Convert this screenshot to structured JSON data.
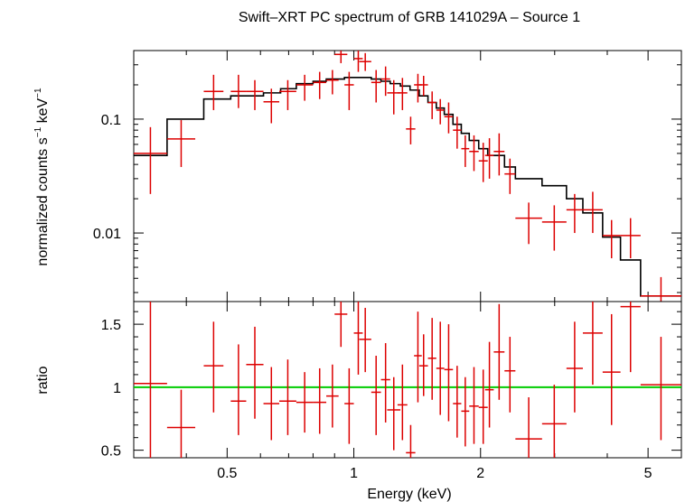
{
  "chart_data": {
    "type": "scatter",
    "title": "Swift–XRT PC spectrum of GRB 141029A – Source 1",
    "xlabel": "Energy (keV)",
    "x_scale": "log",
    "xlim": [
      0.3,
      6.0
    ],
    "x_ticks": [
      0.5,
      1,
      2,
      5
    ],
    "x_tick_labels": [
      "0.5",
      "1",
      "2",
      "5"
    ],
    "top_panel": {
      "ylabel_main": "normalized counts s",
      "ylabel_sup1": "−1",
      "ylabel_mid": " keV",
      "ylabel_sup2": "−1",
      "y_scale": "log",
      "ylim": [
        0.0025,
        0.4
      ],
      "y_ticks": [
        0.01,
        0.1
      ],
      "y_tick_labels": [
        "0.01",
        "0.1"
      ],
      "data_color": "#dd0000",
      "model_color": "#000000",
      "data": [
        {
          "x0": 0.3,
          "x1": 0.36,
          "y": 0.05,
          "ylo": 0.022,
          "yhi": 0.085
        },
        {
          "x0": 0.36,
          "x1": 0.42,
          "y": 0.067,
          "ylo": 0.038,
          "yhi": 0.098
        },
        {
          "x0": 0.44,
          "x1": 0.49,
          "y": 0.175,
          "ylo": 0.12,
          "yhi": 0.245
        },
        {
          "x0": 0.51,
          "x1": 0.555,
          "y": 0.175,
          "ylo": 0.125,
          "yhi": 0.245
        },
        {
          "x0": 0.555,
          "x1": 0.61,
          "y": 0.175,
          "ylo": 0.12,
          "yhi": 0.22
        },
        {
          "x0": 0.61,
          "x1": 0.665,
          "y": 0.142,
          "ylo": 0.092,
          "yhi": 0.185
        },
        {
          "x0": 0.665,
          "x1": 0.73,
          "y": 0.175,
          "ylo": 0.12,
          "yhi": 0.22
        },
        {
          "x0": 0.73,
          "x1": 0.8,
          "y": 0.2,
          "ylo": 0.145,
          "yhi": 0.245
        },
        {
          "x0": 0.8,
          "x1": 0.86,
          "y": 0.21,
          "ylo": 0.15,
          "yhi": 0.26
        },
        {
          "x0": 0.86,
          "x1": 0.92,
          "y": 0.22,
          "ylo": 0.165,
          "yhi": 0.27
        },
        {
          "x0": 0.9,
          "x1": 0.965,
          "y": 0.37,
          "ylo": 0.31,
          "yhi": 0.45
        },
        {
          "x0": 0.95,
          "x1": 1.0,
          "y": 0.2,
          "ylo": 0.12,
          "yhi": 0.26
        },
        {
          "x0": 1.0,
          "x1": 1.05,
          "y": 0.34,
          "ylo": 0.26,
          "yhi": 0.41
        },
        {
          "x0": 1.03,
          "x1": 1.1,
          "y": 0.32,
          "ylo": 0.265,
          "yhi": 0.38
        },
        {
          "x0": 1.1,
          "x1": 1.16,
          "y": 0.21,
          "ylo": 0.14,
          "yhi": 0.27
        },
        {
          "x0": 1.16,
          "x1": 1.22,
          "y": 0.225,
          "ylo": 0.16,
          "yhi": 0.29
        },
        {
          "x0": 1.2,
          "x1": 1.29,
          "y": 0.17,
          "ylo": 0.11,
          "yhi": 0.22
        },
        {
          "x0": 1.27,
          "x1": 1.34,
          "y": 0.17,
          "ylo": 0.12,
          "yhi": 0.23
        },
        {
          "x0": 1.33,
          "x1": 1.4,
          "y": 0.082,
          "ylo": 0.06,
          "yhi": 0.105
        },
        {
          "x0": 1.39,
          "x1": 1.45,
          "y": 0.2,
          "ylo": 0.14,
          "yhi": 0.25
        },
        {
          "x0": 1.43,
          "x1": 1.5,
          "y": 0.2,
          "ylo": 0.16,
          "yhi": 0.24
        },
        {
          "x0": 1.5,
          "x1": 1.57,
          "y": 0.14,
          "ylo": 0.1,
          "yhi": 0.175
        },
        {
          "x0": 1.57,
          "x1": 1.64,
          "y": 0.12,
          "ylo": 0.09,
          "yhi": 0.15
        },
        {
          "x0": 1.64,
          "x1": 1.72,
          "y": 0.105,
          "ylo": 0.075,
          "yhi": 0.14
        },
        {
          "x0": 1.72,
          "x1": 1.8,
          "y": 0.08,
          "ylo": 0.055,
          "yhi": 0.105
        },
        {
          "x0": 1.8,
          "x1": 1.88,
          "y": 0.055,
          "ylo": 0.038,
          "yhi": 0.072
        },
        {
          "x0": 1.88,
          "x1": 1.98,
          "y": 0.052,
          "ylo": 0.035,
          "yhi": 0.072
        },
        {
          "x0": 1.98,
          "x1": 2.08,
          "y": 0.043,
          "ylo": 0.028,
          "yhi": 0.062
        },
        {
          "x0": 2.05,
          "x1": 2.15,
          "y": 0.048,
          "ylo": 0.03,
          "yhi": 0.068
        },
        {
          "x0": 2.15,
          "x1": 2.28,
          "y": 0.052,
          "ylo": 0.032,
          "yhi": 0.075
        },
        {
          "x0": 2.28,
          "x1": 2.42,
          "y": 0.033,
          "ylo": 0.022,
          "yhi": 0.045
        },
        {
          "x0": 2.42,
          "x1": 2.8,
          "y": 0.0135,
          "ylo": 0.008,
          "yhi": 0.0185
        },
        {
          "x0": 2.8,
          "x1": 3.2,
          "y": 0.0125,
          "ylo": 0.007,
          "yhi": 0.0175
        },
        {
          "x0": 3.2,
          "x1": 3.5,
          "y": 0.016,
          "ylo": 0.01,
          "yhi": 0.022
        },
        {
          "x0": 3.5,
          "x1": 3.9,
          "y": 0.016,
          "ylo": 0.01,
          "yhi": 0.023
        },
        {
          "x0": 3.9,
          "x1": 4.3,
          "y": 0.0095,
          "ylo": 0.006,
          "yhi": 0.013
        },
        {
          "x0": 4.3,
          "x1": 4.8,
          "y": 0.0095,
          "ylo": 0.006,
          "yhi": 0.0135
        },
        {
          "x0": 4.8,
          "x1": 6.0,
          "y": 0.0028,
          "ylo": 0.0016,
          "yhi": 0.0041
        }
      ],
      "model_steps": [
        {
          "x0": 0.3,
          "x1": 0.36,
          "y": 0.048
        },
        {
          "x0": 0.36,
          "x1": 0.44,
          "y": 0.1
        },
        {
          "x0": 0.44,
          "x1": 0.51,
          "y": 0.15
        },
        {
          "x0": 0.51,
          "x1": 0.61,
          "y": 0.16
        },
        {
          "x0": 0.61,
          "x1": 0.67,
          "y": 0.17
        },
        {
          "x0": 0.67,
          "x1": 0.73,
          "y": 0.185
        },
        {
          "x0": 0.73,
          "x1": 0.8,
          "y": 0.205
        },
        {
          "x0": 0.8,
          "x1": 0.86,
          "y": 0.215
        },
        {
          "x0": 0.86,
          "x1": 0.95,
          "y": 0.225
        },
        {
          "x0": 0.95,
          "x1": 1.1,
          "y": 0.232
        },
        {
          "x0": 1.1,
          "x1": 1.16,
          "y": 0.225
        },
        {
          "x0": 1.16,
          "x1": 1.22,
          "y": 0.215
        },
        {
          "x0": 1.22,
          "x1": 1.29,
          "y": 0.205
        },
        {
          "x0": 1.29,
          "x1": 1.36,
          "y": 0.195
        },
        {
          "x0": 1.36,
          "x1": 1.43,
          "y": 0.18
        },
        {
          "x0": 1.43,
          "x1": 1.5,
          "y": 0.16
        },
        {
          "x0": 1.5,
          "x1": 1.57,
          "y": 0.14
        },
        {
          "x0": 1.57,
          "x1": 1.64,
          "y": 0.125
        },
        {
          "x0": 1.64,
          "x1": 1.72,
          "y": 0.11
        },
        {
          "x0": 1.72,
          "x1": 1.8,
          "y": 0.09
        },
        {
          "x0": 1.8,
          "x1": 1.88,
          "y": 0.075
        },
        {
          "x0": 1.88,
          "x1": 1.98,
          "y": 0.065
        },
        {
          "x0": 1.98,
          "x1": 2.08,
          "y": 0.055
        },
        {
          "x0": 2.08,
          "x1": 2.28,
          "y": 0.048
        },
        {
          "x0": 2.28,
          "x1": 2.42,
          "y": 0.038
        },
        {
          "x0": 2.42,
          "x1": 2.8,
          "y": 0.03
        },
        {
          "x0": 2.8,
          "x1": 3.2,
          "y": 0.026
        },
        {
          "x0": 3.2,
          "x1": 3.5,
          "y": 0.02
        },
        {
          "x0": 3.5,
          "x1": 3.9,
          "y": 0.015
        },
        {
          "x0": 3.9,
          "x1": 4.3,
          "y": 0.0092
        },
        {
          "x0": 4.3,
          "x1": 4.8,
          "y": 0.0058
        },
        {
          "x0": 4.8,
          "x1": 6.0,
          "y": 0.0028
        }
      ]
    },
    "bottom_panel": {
      "ylabel": "ratio",
      "y_scale": "linear",
      "ylim": [
        0.44,
        1.68
      ],
      "y_ticks": [
        0.5,
        1,
        1.5
      ],
      "y_tick_labels": [
        "0.5",
        "1",
        "1.5"
      ],
      "reference_line": 1,
      "reference_color": "#00cc00",
      "data": [
        {
          "x0": 0.3,
          "x1": 0.36,
          "y": 1.03,
          "ylo": 0.44,
          "yhi": 1.68
        },
        {
          "x0": 0.36,
          "x1": 0.42,
          "y": 0.68,
          "ylo": 0.44,
          "yhi": 0.98
        },
        {
          "x0": 0.44,
          "x1": 0.49,
          "y": 1.17,
          "ylo": 0.8,
          "yhi": 1.52
        },
        {
          "x0": 0.51,
          "x1": 0.555,
          "y": 0.89,
          "ylo": 0.62,
          "yhi": 1.34
        },
        {
          "x0": 0.555,
          "x1": 0.61,
          "y": 1.18,
          "ylo": 0.75,
          "yhi": 1.48
        },
        {
          "x0": 0.61,
          "x1": 0.665,
          "y": 0.87,
          "ylo": 0.58,
          "yhi": 1.16
        },
        {
          "x0": 0.665,
          "x1": 0.73,
          "y": 0.89,
          "ylo": 0.62,
          "yhi": 1.22
        },
        {
          "x0": 0.73,
          "x1": 0.8,
          "y": 0.88,
          "ylo": 0.64,
          "yhi": 1.12
        },
        {
          "x0": 0.8,
          "x1": 0.86,
          "y": 0.88,
          "ylo": 0.63,
          "yhi": 1.15
        },
        {
          "x0": 0.86,
          "x1": 0.92,
          "y": 0.93,
          "ylo": 0.68,
          "yhi": 1.18
        },
        {
          "x0": 0.9,
          "x1": 0.965,
          "y": 1.58,
          "ylo": 1.32,
          "yhi": 1.68
        },
        {
          "x0": 0.95,
          "x1": 1.0,
          "y": 0.87,
          "ylo": 0.55,
          "yhi": 1.15
        },
        {
          "x0": 1.0,
          "x1": 1.05,
          "y": 1.43,
          "ylo": 1.1,
          "yhi": 1.68
        },
        {
          "x0": 1.03,
          "x1": 1.1,
          "y": 1.38,
          "ylo": 1.12,
          "yhi": 1.63
        },
        {
          "x0": 1.1,
          "x1": 1.16,
          "y": 0.96,
          "ylo": 0.62,
          "yhi": 1.25
        },
        {
          "x0": 1.16,
          "x1": 1.22,
          "y": 1.06,
          "ylo": 0.72,
          "yhi": 1.35
        },
        {
          "x0": 1.2,
          "x1": 1.29,
          "y": 0.82,
          "ylo": 0.5,
          "yhi": 1.08
        },
        {
          "x0": 1.27,
          "x1": 1.34,
          "y": 0.86,
          "ylo": 0.58,
          "yhi": 1.18
        },
        {
          "x0": 1.33,
          "x1": 1.4,
          "y": 0.48,
          "ylo": 0.44,
          "yhi": 0.7
        },
        {
          "x0": 1.39,
          "x1": 1.45,
          "y": 1.25,
          "ylo": 0.88,
          "yhi": 1.6
        },
        {
          "x0": 1.43,
          "x1": 1.5,
          "y": 1.17,
          "ylo": 0.93,
          "yhi": 1.42
        },
        {
          "x0": 1.5,
          "x1": 1.57,
          "y": 1.23,
          "ylo": 0.9,
          "yhi": 1.55
        },
        {
          "x0": 1.57,
          "x1": 1.64,
          "y": 1.15,
          "ylo": 0.78,
          "yhi": 1.52
        },
        {
          "x0": 1.64,
          "x1": 1.72,
          "y": 1.14,
          "ylo": 0.73,
          "yhi": 1.5
        },
        {
          "x0": 1.72,
          "x1": 1.8,
          "y": 0.87,
          "ylo": 0.6,
          "yhi": 1.17
        },
        {
          "x0": 1.8,
          "x1": 1.88,
          "y": 0.81,
          "ylo": 0.53,
          "yhi": 1.08
        },
        {
          "x0": 1.88,
          "x1": 1.98,
          "y": 0.85,
          "ylo": 0.55,
          "yhi": 1.16
        },
        {
          "x0": 1.98,
          "x1": 2.08,
          "y": 0.84,
          "ylo": 0.55,
          "yhi": 1.14
        },
        {
          "x0": 2.05,
          "x1": 2.15,
          "y": 0.98,
          "ylo": 0.68,
          "yhi": 1.36
        },
        {
          "x0": 2.15,
          "x1": 2.28,
          "y": 1.28,
          "ylo": 0.9,
          "yhi": 1.66
        },
        {
          "x0": 2.28,
          "x1": 2.42,
          "y": 1.13,
          "ylo": 0.8,
          "yhi": 1.4
        },
        {
          "x0": 2.42,
          "x1": 2.8,
          "y": 0.59,
          "ylo": 0.44,
          "yhi": 0.92
        },
        {
          "x0": 2.8,
          "x1": 3.2,
          "y": 0.71,
          "ylo": 0.44,
          "yhi": 1.02
        },
        {
          "x0": 3.2,
          "x1": 3.5,
          "y": 1.15,
          "ylo": 0.8,
          "yhi": 1.52
        },
        {
          "x0": 3.5,
          "x1": 3.9,
          "y": 1.43,
          "ylo": 1.02,
          "yhi": 1.68
        },
        {
          "x0": 3.9,
          "x1": 4.3,
          "y": 1.12,
          "ylo": 0.7,
          "yhi": 1.58
        },
        {
          "x0": 4.3,
          "x1": 4.8,
          "y": 1.64,
          "ylo": 1.12,
          "yhi": 1.68
        },
        {
          "x0": 4.8,
          "x1": 6.0,
          "y": 1.02,
          "ylo": 0.58,
          "yhi": 1.4
        }
      ]
    }
  }
}
